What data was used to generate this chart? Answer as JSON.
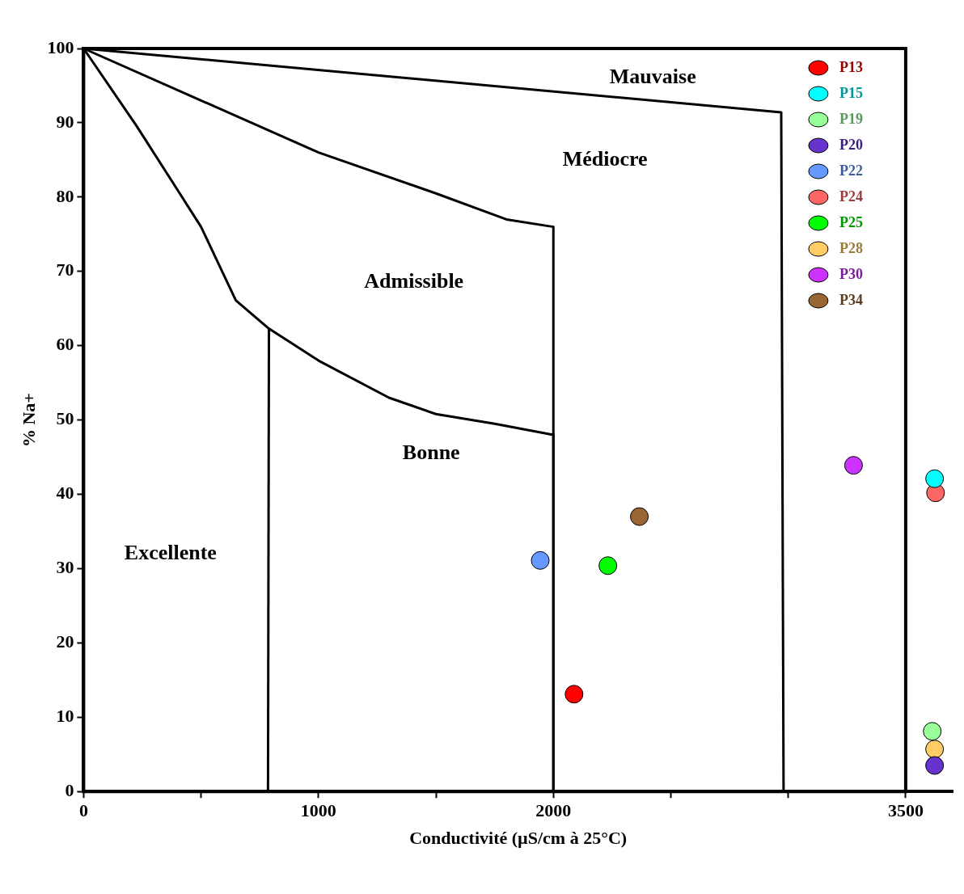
{
  "chart_data": {
    "type": "scatter",
    "xlabel": "Conductivité (µS/cm à 25°C)",
    "ylabel": "% Na+",
    "xlim": [
      0,
      3700
    ],
    "ylim": [
      0,
      100
    ],
    "xticks": [
      0,
      {
        "value": 500,
        "label": null
      },
      1000,
      {
        "value": 1500,
        "label": null
      },
      2000,
      {
        "value": 2500,
        "label": null
      },
      {
        "value": 3000,
        "label": null
      },
      3500
    ],
    "yticks": [
      0,
      10,
      20,
      30,
      40,
      50,
      60,
      70,
      80,
      90,
      100
    ],
    "grid": false,
    "legend": "top right",
    "marker": "circle",
    "series": [
      {
        "type": "line",
        "color": "#000000",
        "marker": "none",
        "x": [
          0,
          2970,
          2980
        ],
        "values": [
          100,
          91.4,
          0
        ]
      },
      {
        "type": "line",
        "color": "#000000",
        "marker": "none",
        "x": [
          0,
          500,
          1000,
          1500,
          1800,
          2000,
          2000
        ],
        "values": [
          100,
          93,
          86,
          80.5,
          77,
          76,
          0
        ]
      },
      {
        "type": "line",
        "color": "#000000",
        "marker": "none",
        "x": [
          0,
          225,
          401,
          500,
          648,
          789,
          1000,
          1300,
          1500,
          1750,
          2000,
          2000
        ],
        "values": [
          100,
          89.6,
          80.9,
          76,
          66.1,
          62.3,
          58,
          53,
          50.8,
          49.5,
          48,
          0
        ]
      },
      {
        "type": "line",
        "color": "#000000",
        "marker": "none",
        "x": [
          789,
          785
        ],
        "values": [
          62.3,
          0
        ]
      },
      {
        "name": "P13",
        "color": "#ff0000",
        "x": [
          2088
        ],
        "values": [
          13.1
        ]
      },
      {
        "name": "P15",
        "color": "#00ffff",
        "x": [
          3623
        ],
        "values": [
          42.1
        ]
      },
      {
        "name": "P19",
        "color": "#99ff99",
        "x": [
          3613
        ],
        "values": [
          8.1
        ]
      },
      {
        "name": "P20",
        "color": "#6633cc",
        "x": [
          3623
        ],
        "values": [
          3.5
        ]
      },
      {
        "name": "P22",
        "color": "#6699ff",
        "x": [
          1944
        ],
        "values": [
          31.1
        ]
      },
      {
        "name": "P24",
        "color": "#ff6666",
        "x": [
          3627
        ],
        "values": [
          40.2
        ]
      },
      {
        "name": "P25",
        "color": "#00ff00",
        "x": [
          2232
        ],
        "values": [
          30.4
        ]
      },
      {
        "name": "P28",
        "color": "#ffcc66",
        "x": [
          3623
        ],
        "values": [
          5.7
        ]
      },
      {
        "name": "P30",
        "color": "#cc33ff",
        "x": [
          3278
        ],
        "values": [
          43.9
        ]
      },
      {
        "name": "P34",
        "color": "#996633",
        "x": [
          2366
        ],
        "values": [
          37.0
        ]
      }
    ],
    "annotations": [
      "Mauvaise",
      "Médiocre",
      "Admissible",
      "Bonne",
      "Excellente"
    ]
  }
}
